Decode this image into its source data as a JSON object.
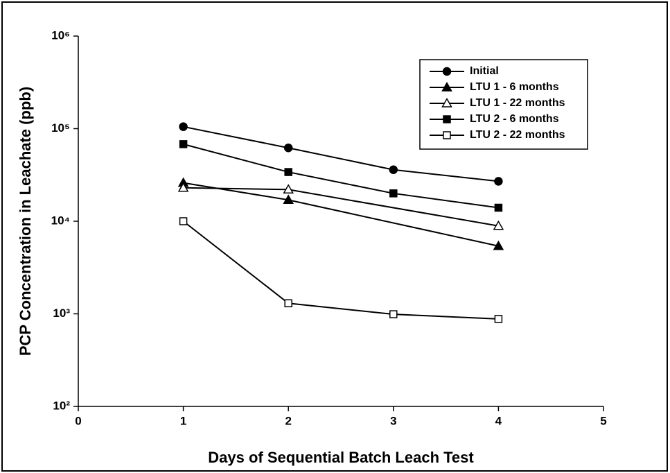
{
  "chart_data": {
    "type": "line",
    "xlabel": "Days of Sequential Batch Leach Test",
    "ylabel": "PCP Concentration in Leachate (ppb)",
    "xlim": [
      0,
      5
    ],
    "xticks": [
      0,
      1,
      2,
      3,
      4,
      5
    ],
    "ylim": [
      100,
      1000000
    ],
    "yscale": "log",
    "yticks": [
      {
        "value": 100,
        "label": "10²"
      },
      {
        "value": 1000,
        "label": "10³"
      },
      {
        "value": 10000,
        "label": "10⁴"
      },
      {
        "value": 100000,
        "label": "10⁵"
      },
      {
        "value": 1000000,
        "label": "10⁶"
      }
    ],
    "grid": false,
    "legend": "upper right",
    "series": [
      {
        "name": "Initial",
        "color": "#000000",
        "marker": "circle",
        "filled": true,
        "x": [
          1,
          2,
          3,
          4
        ],
        "values": [
          105000,
          62000,
          36000,
          27000
        ]
      },
      {
        "name": "LTU 1 - 6 months",
        "color": "#000000",
        "marker": "triangle",
        "filled": true,
        "x": [
          1,
          2,
          4
        ],
        "values": [
          26000,
          17000,
          5400
        ]
      },
      {
        "name": "LTU 1 - 22 months",
        "color": "#000000",
        "marker": "triangle",
        "filled": false,
        "x": [
          1,
          2,
          4
        ],
        "values": [
          23000,
          22000,
          8900
        ]
      },
      {
        "name": "LTU 2 - 6 months",
        "color": "#000000",
        "marker": "square",
        "filled": true,
        "x": [
          1,
          2,
          3,
          4
        ],
        "values": [
          68000,
          34000,
          20000,
          14000
        ]
      },
      {
        "name": "LTU 2 - 22 months",
        "color": "#000000",
        "marker": "square",
        "filled": false,
        "x": [
          1,
          2,
          3,
          4
        ],
        "values": [
          10000,
          1300,
          990,
          880
        ]
      }
    ]
  }
}
